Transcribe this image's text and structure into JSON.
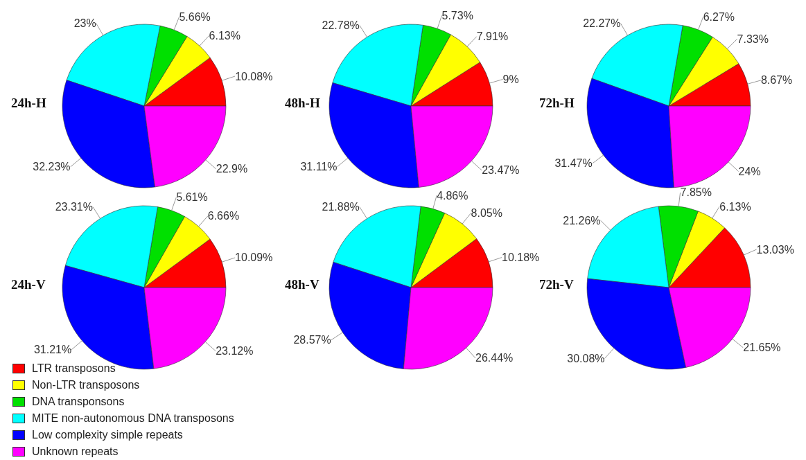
{
  "chart_data": [
    {
      "type": "pie",
      "title": "24h-H",
      "legend": "bottom left",
      "categories": [
        "LTR transposons",
        "Non-LTR transposons",
        "DNA transponsons",
        "MITE non-autonomous DNA transposons",
        "Low complexity simple repeats",
        "Unknown repeats"
      ],
      "colors": [
        "#ff0000",
        "#ffff00",
        "#00e000",
        "#00ffff",
        "#0000ff",
        "#ff00ff"
      ],
      "values": [
        10.08,
        6.13,
        5.66,
        23,
        32.23,
        22.9
      ],
      "value_labels": [
        "10.08%",
        "6.13%",
        "5.66%",
        "23%",
        "32.23%",
        "22.9%"
      ]
    },
    {
      "type": "pie",
      "title": "48h-H",
      "colors": [
        "#ff0000",
        "#ffff00",
        "#00e000",
        "#00ffff",
        "#0000ff",
        "#ff00ff"
      ],
      "values": [
        9,
        7.91,
        5.73,
        22.78,
        31.11,
        23.47
      ],
      "value_labels": [
        "9%",
        "7.91%",
        "5.73%",
        "22.78%",
        "31.11%",
        "23.47%"
      ]
    },
    {
      "type": "pie",
      "title": "72h-H",
      "colors": [
        "#ff0000",
        "#ffff00",
        "#00e000",
        "#00ffff",
        "#0000ff",
        "#ff00ff"
      ],
      "values": [
        8.67,
        7.33,
        6.27,
        22.27,
        31.47,
        24
      ],
      "value_labels": [
        "8.67%",
        "7.33%",
        "6.27%",
        "22.27%",
        "31.47%",
        "24%"
      ]
    },
    {
      "type": "pie",
      "title": "24h-V",
      "colors": [
        "#ff0000",
        "#ffff00",
        "#00e000",
        "#00ffff",
        "#0000ff",
        "#ff00ff"
      ],
      "values": [
        10.09,
        6.66,
        5.61,
        23.31,
        31.21,
        23.12
      ],
      "value_labels": [
        "10.09%",
        "6.66%",
        "5.61%",
        "23.31%",
        "31.21%",
        "23.12%"
      ]
    },
    {
      "type": "pie",
      "title": "48h-V",
      "colors": [
        "#ff0000",
        "#ffff00",
        "#00e000",
        "#00ffff",
        "#0000ff",
        "#ff00ff"
      ],
      "values": [
        10.18,
        8.05,
        4.86,
        21.88,
        28.57,
        26.44
      ],
      "value_labels": [
        "10.18%",
        "8.05%",
        "4.86%",
        "21.88%",
        "28.57%",
        "26.44%"
      ]
    },
    {
      "type": "pie",
      "title": "72h-V",
      "colors": [
        "#ff0000",
        "#ffff00",
        "#00e000",
        "#00ffff",
        "#0000ff",
        "#ff00ff"
      ],
      "values": [
        13.03,
        6.13,
        7.85,
        21.26,
        30.08,
        21.65
      ],
      "value_labels": [
        "13.03%",
        "6.13%",
        "7.85%",
        "21.26%",
        "30.08%",
        "21.65%"
      ]
    }
  ]
}
